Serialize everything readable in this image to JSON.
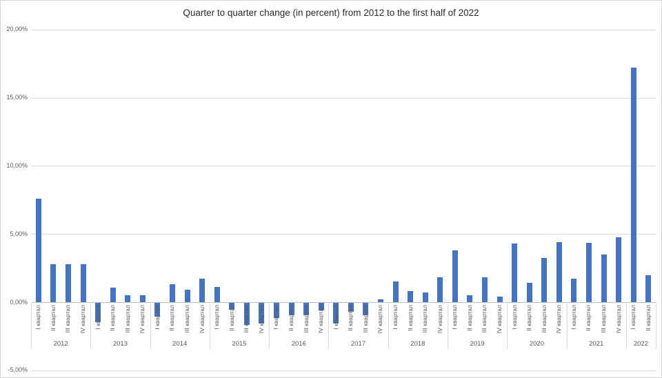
{
  "chart_data": {
    "type": "bar",
    "title": "Quarter to quarter change (in percent) from 2012 to the first half of 2022",
    "xlabel": "",
    "ylabel": "",
    "legend": false,
    "grid": true,
    "quarter_labels": [
      "I квартал",
      "II квартал",
      "III квартал",
      "IV квартал"
    ],
    "y_axis": {
      "min": -5,
      "max": 20,
      "ticks": [
        {
          "value": 20,
          "label": "20,00%"
        },
        {
          "value": 15,
          "label": "15,00%"
        },
        {
          "value": 10,
          "label": "10,00%"
        },
        {
          "value": 5,
          "label": "5,00%"
        },
        {
          "value": 0,
          "label": "0,00%"
        },
        {
          "value": -5,
          "label": "-5,00%"
        }
      ]
    },
    "groups": [
      {
        "year": "2012",
        "values": [
          7.6,
          2.8,
          2.8,
          2.8
        ]
      },
      {
        "year": "2013",
        "values": [
          -1.4,
          1.05,
          0.5,
          0.5
        ]
      },
      {
        "year": "2014",
        "values": [
          -1.0,
          1.3,
          0.9,
          1.7
        ]
      },
      {
        "year": "2015",
        "values": [
          1.1,
          -0.5,
          -1.6,
          -1.5
        ]
      },
      {
        "year": "2016",
        "values": [
          -1.1,
          -0.9,
          -0.9,
          -0.55
        ]
      },
      {
        "year": "2017",
        "values": [
          -1.5,
          -0.65,
          -0.9,
          0.2
        ]
      },
      {
        "year": "2018",
        "values": [
          1.5,
          0.8,
          0.7,
          1.8
        ]
      },
      {
        "year": "2019",
        "values": [
          3.8,
          0.5,
          1.8,
          0.4
        ]
      },
      {
        "year": "2020",
        "values": [
          4.3,
          1.4,
          3.25,
          4.4
        ]
      },
      {
        "year": "2021",
        "values": [
          1.7,
          4.35,
          3.5,
          4.75
        ]
      },
      {
        "year": "2022",
        "values": [
          17.2,
          1.95
        ]
      }
    ],
    "colors": {
      "bar": "#4472C4",
      "gridline": "#D9D9D9",
      "axis": "#BFBFBF",
      "tick_label": "#595959",
      "title": "#2B2B2B",
      "frame_border": "#D6D6D6"
    }
  }
}
